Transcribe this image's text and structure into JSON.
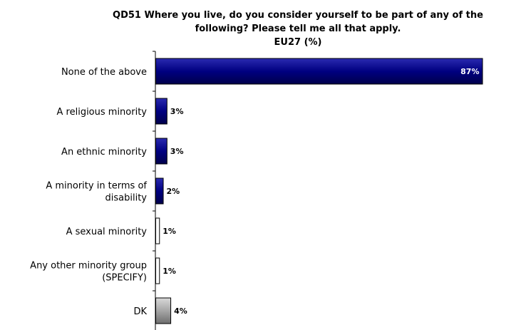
{
  "colors": {
    "navy": "#000080",
    "white": "#ffffff",
    "grey": "#a6a6a6",
    "outline": "#000000"
  },
  "chart_data": {
    "type": "bar",
    "orientation": "horizontal",
    "title": [
      "QD51 Where you live, do you consider yourself to be part of any of the",
      "following? Please tell me all that apply.",
      "EU27 (%)"
    ],
    "categories": [
      [
        "None of the above"
      ],
      [
        "A religious minority"
      ],
      [
        "An ethnic minority"
      ],
      [
        "A minority in terms of",
        "disability"
      ],
      [
        "A sexual minority"
      ],
      [
        "Any other minority group",
        "(SPECIFY)"
      ],
      [
        "DK"
      ]
    ],
    "values": [
      87,
      3,
      3,
      2,
      1,
      1,
      4
    ],
    "value_labels": [
      "87%",
      "3%",
      "3%",
      "2%",
      "1%",
      "1%",
      "4%"
    ],
    "bar_colors": [
      "navy",
      "navy",
      "navy",
      "navy",
      "white",
      "white",
      "grey"
    ],
    "xlim": [
      0,
      100
    ],
    "grid": false,
    "legend": "none"
  }
}
